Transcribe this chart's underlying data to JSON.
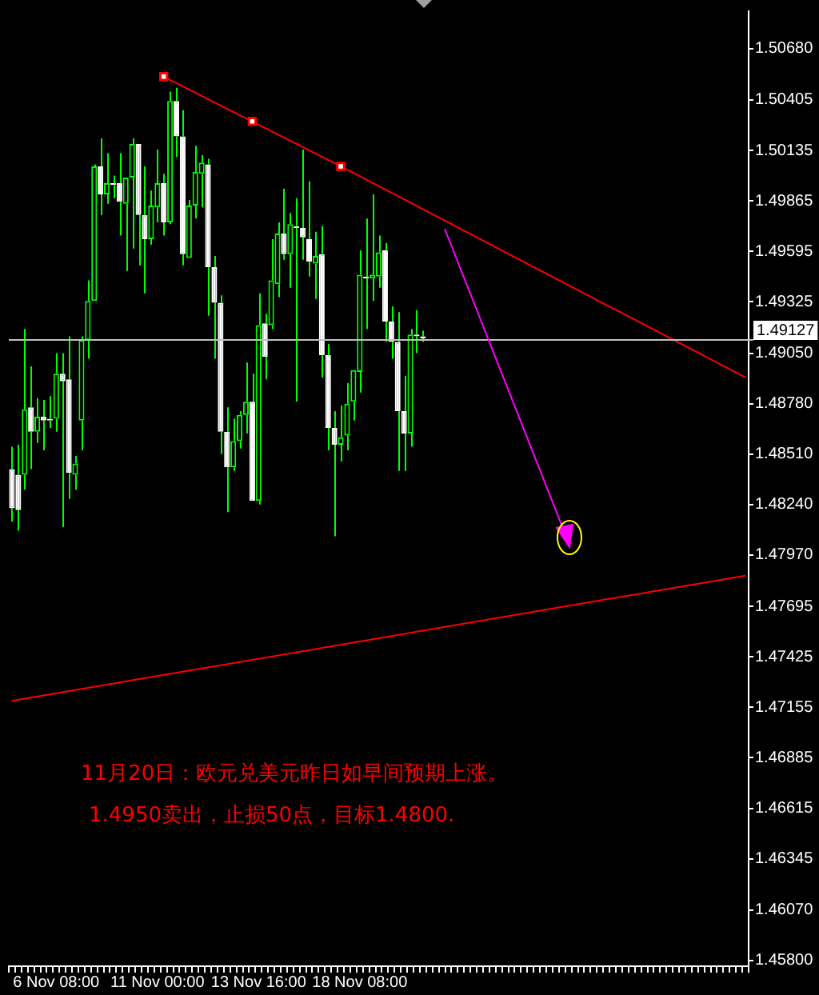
{
  "chart_data": {
    "type": "candlestick",
    "color": "#00ff00",
    "grid": false,
    "legend": false,
    "colors": [
      "#ffffff",
      "#ffffff",
      "#00ff00",
      "#ffffff",
      "#00ff00",
      "#ffffff",
      "#ffffff",
      "#00ff00",
      "#ffffff",
      "#ffffff",
      "#00ff00",
      "#00ff00",
      "#00ff00",
      "#00ff00",
      "#ffffff",
      "#00ff00",
      "#ffffff",
      "#ffffff",
      "#00ff00",
      "#00ff00",
      "#ffffff",
      "#ffffff",
      "#00ff00",
      "#00ff00",
      "#ffffff",
      "#00ff00",
      "#ffffff",
      "#ffffff",
      "#00ff00",
      "#00ff00",
      "#00ff00",
      "#ffffff",
      "#ffffff",
      "#ffffff",
      "#ffffff",
      "#00ff00",
      "#00ff00",
      "#00ff00",
      "#ffffff",
      "#00ff00",
      "#ffffff",
      "#00ff00",
      "#00ff00",
      "#ffffff",
      "#00ff00",
      "#ffffff",
      "#ffffff",
      "#ffffff",
      "#00ff00",
      "#ffffff",
      "#ffffff",
      "#ffffff",
      "#00ff00",
      "#00ff00",
      "#00ff00",
      "#00ff00",
      "#ffffff",
      "#00ff00",
      "#00ff00",
      "#ffffff",
      "#ffffff",
      "#ffffff",
      "#ffffff",
      "#00ff00",
      "#ffffff",
      "#ffffff",
      null,
      null,
      null,
      null,
      null,
      null,
      null,
      null,
      null,
      null,
      null,
      null,
      null,
      null,
      null,
      null,
      null,
      null,
      null,
      null,
      null,
      null,
      null,
      null,
      null,
      null,
      null,
      null,
      null,
      null,
      null,
      null,
      null,
      null,
      null,
      null,
      null,
      null,
      null,
      null,
      null,
      null,
      null,
      null,
      null,
      null,
      null,
      null,
      null,
      null,
      null
    ],
    "categories": [
      null,
      null,
      null,
      null,
      null,
      null,
      null,
      "6 Nov 08:00",
      null,
      null,
      null,
      null,
      null,
      null,
      null,
      null,
      null,
      null,
      null,
      null,
      null,
      null,
      null,
      "11 Nov 00:00",
      null,
      null,
      null,
      null,
      null,
      null,
      null,
      null,
      null,
      null,
      null,
      null,
      null,
      null,
      null,
      "13 Nov 16:00",
      null,
      null,
      null,
      null,
      null,
      null,
      null,
      null,
      null,
      null,
      null,
      null,
      null,
      null,
      null,
      "18 Nov 08:00",
      null,
      null,
      null,
      null,
      null,
      null,
      null,
      null,
      null,
      null,
      null,
      null,
      null,
      null,
      null,
      null,
      null,
      null,
      null,
      null,
      null,
      null,
      null,
      null,
      null,
      null,
      null,
      null,
      null,
      null,
      null,
      null,
      null,
      null,
      null,
      null,
      null,
      null,
      null,
      null,
      null,
      null,
      null,
      null,
      null,
      null,
      null,
      null,
      null,
      null,
      null,
      null,
      null,
      null,
      null,
      null,
      null,
      null,
      null,
      null,
      null
    ],
    "ohlc": [
      [
        1.4843,
        1.4855,
        1.4815,
        1.4822
      ],
      [
        1.484,
        1.4856,
        1.481,
        1.4821
      ],
      [
        1.484,
        1.4918,
        1.4832,
        1.4875
      ],
      [
        1.4876,
        1.4898,
        1.4843,
        1.4863
      ],
      [
        1.4863,
        1.4881,
        1.4857,
        1.4871
      ],
      [
        1.4871,
        1.488,
        1.4853,
        1.4869
      ],
      [
        1.487,
        1.4882,
        1.4865,
        1.4869
      ],
      [
        1.487,
        1.4905,
        1.4863,
        1.4894
      ],
      [
        1.4894,
        1.4905,
        1.4812,
        1.489
      ],
      [
        1.4891,
        1.4914,
        1.4827,
        1.4841
      ],
      [
        1.484,
        1.485,
        1.4832,
        1.4846
      ],
      [
        1.4869,
        1.4914,
        1.4853,
        1.4912
      ],
      [
        1.4912,
        1.4944,
        1.4902,
        1.4933
      ],
      [
        1.4933,
        1.5006,
        1.4933,
        1.5005
      ],
      [
        1.5005,
        1.502,
        1.4979,
        1.499
      ],
      [
        1.499,
        1.5012,
        1.4985,
        1.4996
      ],
      [
        1.4996,
        1.5,
        1.4988,
        1.4995
      ],
      [
        1.4996,
        1.5012,
        1.4968,
        1.4986
      ],
      [
        1.4985,
        1.4999,
        1.4949,
        1.4999
      ],
      [
        1.4999,
        1.502,
        1.4961,
        1.5017
      ],
      [
        1.5017,
        1.5017,
        1.4952,
        1.4979
      ],
      [
        1.4979,
        1.5005,
        1.4937,
        1.4966
      ],
      [
        1.4966,
        1.4992,
        1.4963,
        1.4984
      ],
      [
        1.4983,
        1.5014,
        1.4975,
        1.4996
      ],
      [
        1.4996,
        1.5001,
        1.4968,
        1.4975
      ],
      [
        1.4975,
        1.5045,
        1.4974,
        1.504
      ],
      [
        1.504,
        1.5047,
        1.501,
        1.5021
      ],
      [
        1.5021,
        1.5035,
        1.4952,
        1.4958
      ],
      [
        1.4956,
        1.4987,
        1.4956,
        1.4984
      ],
      [
        1.4984,
        1.5016,
        1.4977,
        1.5002
      ],
      [
        1.5001,
        1.5011,
        1.4983,
        1.5007
      ],
      [
        1.5006,
        1.5009,
        1.4925,
        1.4951
      ],
      [
        1.4951,
        1.4957,
        1.4902,
        1.4932
      ],
      [
        1.4932,
        1.4936,
        1.4851,
        1.4863
      ],
      [
        1.4863,
        1.4876,
        1.482,
        1.4844
      ],
      [
        1.4844,
        1.487,
        1.4842,
        1.4858
      ],
      [
        1.4858,
        1.4874,
        1.4854,
        1.4872
      ],
      [
        1.4872,
        1.49,
        1.4862,
        1.4879
      ],
      [
        1.4879,
        1.4894,
        1.4826,
        1.4826
      ],
      [
        1.4826,
        1.4937,
        1.4824,
        1.492
      ],
      [
        1.4921,
        1.4926,
        1.4891,
        1.4903
      ],
      [
        1.492,
        1.4966,
        1.4918,
        1.4944
      ],
      [
        1.4942,
        1.4975,
        1.4935,
        1.4969
      ],
      [
        1.4969,
        1.4993,
        1.4955,
        1.4958
      ],
      [
        1.4958,
        1.498,
        1.494,
        1.4974
      ],
      [
        1.4973,
        1.4988,
        1.4879,
        1.4972
      ],
      [
        1.4972,
        1.5014,
        1.4955,
        1.4967
      ],
      [
        1.4966,
        1.4997,
        1.4946,
        1.4954
      ],
      [
        1.4953,
        1.497,
        1.4934,
        1.4957
      ],
      [
        1.4958,
        1.4973,
        1.4892,
        1.4904
      ],
      [
        1.4904,
        1.491,
        1.4853,
        1.4865
      ],
      [
        1.4865,
        1.4874,
        1.4807,
        1.4856
      ],
      [
        1.4856,
        1.4877,
        1.4847,
        1.486
      ],
      [
        1.4861,
        1.4889,
        1.4853,
        1.4878
      ],
      [
        1.4879,
        1.4896,
        1.4869,
        1.4896
      ],
      [
        1.4895,
        1.496,
        1.4884,
        1.4947
      ],
      [
        1.4946,
        1.4977,
        1.4918,
        1.4945
      ],
      [
        1.4945,
        1.499,
        1.4933,
        1.4947
      ],
      [
        1.4946,
        1.4968,
        1.494,
        1.4959
      ],
      [
        1.496,
        1.4964,
        1.4911,
        1.4922
      ],
      [
        1.4922,
        1.493,
        1.4902,
        1.4911
      ],
      [
        1.4911,
        1.4927,
        1.4842,
        1.4874
      ],
      [
        1.4874,
        1.4893,
        1.4842,
        1.4862
      ],
      [
        1.4862,
        1.4918,
        1.4855,
        1.4915
      ],
      [
        1.4915,
        1.4928,
        1.4905,
        1.4914
      ],
      [
        1.4914,
        1.4917,
        1.4911,
        1.4913
      ],
      null,
      null,
      null,
      null,
      null,
      null,
      null,
      null,
      null,
      null,
      null,
      null,
      null,
      null,
      null,
      null,
      null,
      null,
      null,
      null,
      null,
      null,
      null,
      null,
      null,
      null,
      null,
      null,
      null,
      null,
      null,
      null,
      null,
      null,
      null,
      null,
      null,
      null,
      null,
      null,
      null,
      null,
      null,
      null,
      null,
      null,
      null,
      null,
      null,
      null,
      null
    ],
    "series": [
      {
        "type": "line",
        "color": "#ff0000",
        "marker": "square",
        "values": [
          null,
          null,
          null,
          null,
          null,
          null,
          null,
          null,
          null,
          null,
          null,
          null,
          null,
          null,
          null,
          null,
          null,
          null,
          null,
          null,
          null,
          null,
          null,
          null,
          1.5053,
          null,
          null,
          null,
          null,
          null,
          null,
          null,
          null,
          null,
          null,
          null,
          null,
          null,
          1.5029,
          null,
          null,
          null,
          null,
          null,
          null,
          null,
          null,
          null,
          null,
          null,
          null,
          null,
          1.5005,
          null,
          null,
          null,
          null,
          null,
          null,
          null,
          null,
          null,
          null,
          null,
          null,
          null,
          null,
          null,
          null,
          null,
          null,
          null,
          null,
          null,
          null,
          null,
          null,
          null,
          null,
          null,
          null,
          null,
          null,
          null,
          null,
          null,
          null,
          null,
          null,
          null,
          null,
          null,
          null,
          null,
          null,
          null,
          null,
          null,
          null,
          null,
          null,
          null,
          null,
          null,
          null,
          null,
          null,
          null,
          null,
          null,
          null,
          null,
          null,
          null,
          null,
          null,
          null
        ]
      },
      {
        "type": "line",
        "color": "#ff0000",
        "values": [
          null,
          null,
          null,
          null,
          null,
          null,
          null,
          null,
          null,
          null,
          null,
          null,
          null,
          null,
          null,
          null,
          null,
          null,
          null,
          null,
          null,
          null,
          null,
          null,
          null,
          null,
          null,
          null,
          null,
          null,
          null,
          null,
          null,
          null,
          null,
          null,
          null,
          null,
          null,
          null,
          null,
          null,
          null,
          null,
          null,
          null,
          null,
          null,
          null,
          null,
          null,
          null,
          1.5005,
          null,
          null,
          null,
          null,
          null,
          null,
          null,
          null,
          null,
          null,
          null,
          null,
          null,
          null,
          null,
          null,
          null,
          null,
          null,
          null,
          null,
          null,
          null,
          null,
          null,
          null,
          null,
          null,
          null,
          null,
          null,
          null,
          null,
          null,
          null,
          null,
          null,
          null,
          null,
          null,
          null,
          null,
          null,
          null,
          null,
          null,
          null,
          null,
          null,
          null,
          null,
          null,
          null,
          null,
          null,
          null,
          null,
          null,
          null,
          null,
          null,
          null,
          null,
          1.4892
        ]
      },
      {
        "type": "line",
        "color": "#ff0000",
        "values": [
          1.4719,
          null,
          null,
          null,
          null,
          null,
          null,
          null,
          null,
          null,
          null,
          null,
          null,
          null,
          null,
          null,
          null,
          null,
          null,
          null,
          null,
          null,
          null,
          null,
          null,
          null,
          null,
          null,
          null,
          null,
          null,
          null,
          null,
          null,
          null,
          null,
          null,
          null,
          null,
          null,
          null,
          null,
          null,
          null,
          null,
          null,
          null,
          null,
          null,
          null,
          null,
          null,
          null,
          null,
          null,
          null,
          null,
          null,
          null,
          null,
          null,
          null,
          null,
          null,
          null,
          null,
          null,
          null,
          null,
          null,
          null,
          null,
          null,
          null,
          null,
          null,
          null,
          null,
          null,
          null,
          null,
          null,
          null,
          null,
          null,
          null,
          null,
          null,
          null,
          null,
          null,
          null,
          null,
          null,
          null,
          null,
          null,
          null,
          null,
          null,
          null,
          null,
          null,
          null,
          null,
          null,
          null,
          null,
          null,
          null,
          null,
          null,
          null,
          null,
          null,
          null,
          1.4786
        ]
      }
    ],
    "ylim": [
      1.4577,
      1.5088
    ],
    "yticks": [
      {
        "value": 1.5068,
        "label": "1.50680"
      },
      {
        "value": 1.50405,
        "label": "1.50405"
      },
      {
        "value": 1.50135,
        "label": "1.50135"
      },
      {
        "value": 1.49865,
        "label": "1.49865"
      },
      {
        "value": 1.49595,
        "label": "1.49595"
      },
      {
        "value": 1.49325,
        "label": "1.49325"
      },
      {
        "value": 1.4905,
        "label": "1.49050"
      },
      {
        "value": 1.4878,
        "label": "1.48780"
      },
      {
        "value": 1.4851,
        "label": "1.48510"
      },
      {
        "value": 1.4824,
        "label": "1.48240"
      },
      {
        "value": 1.4797,
        "label": "1.47970"
      },
      {
        "value": 1.47695,
        "label": "1.47695"
      },
      {
        "value": 1.47425,
        "label": "1.47425"
      },
      {
        "value": 1.47155,
        "label": "1.47155"
      },
      {
        "value": 1.46885,
        "label": "1.46885"
      },
      {
        "value": 1.46615,
        "label": "1.46615"
      },
      {
        "value": 1.46345,
        "label": "1.46345"
      },
      {
        "value": 1.4607,
        "label": "1.46070"
      },
      {
        "value": 1.458,
        "label": "1.45800"
      }
    ],
    "ref_lines": [
      {
        "axis": "y",
        "value": 1.49127,
        "label": "1.49127",
        "color": "#c0c0c0"
      }
    ],
    "annotations": [
      "11月20日：欧元兑美元昨日如早间预期上涨。",
      "1.4950卖出，止损50点，目标1.4800."
    ]
  }
}
